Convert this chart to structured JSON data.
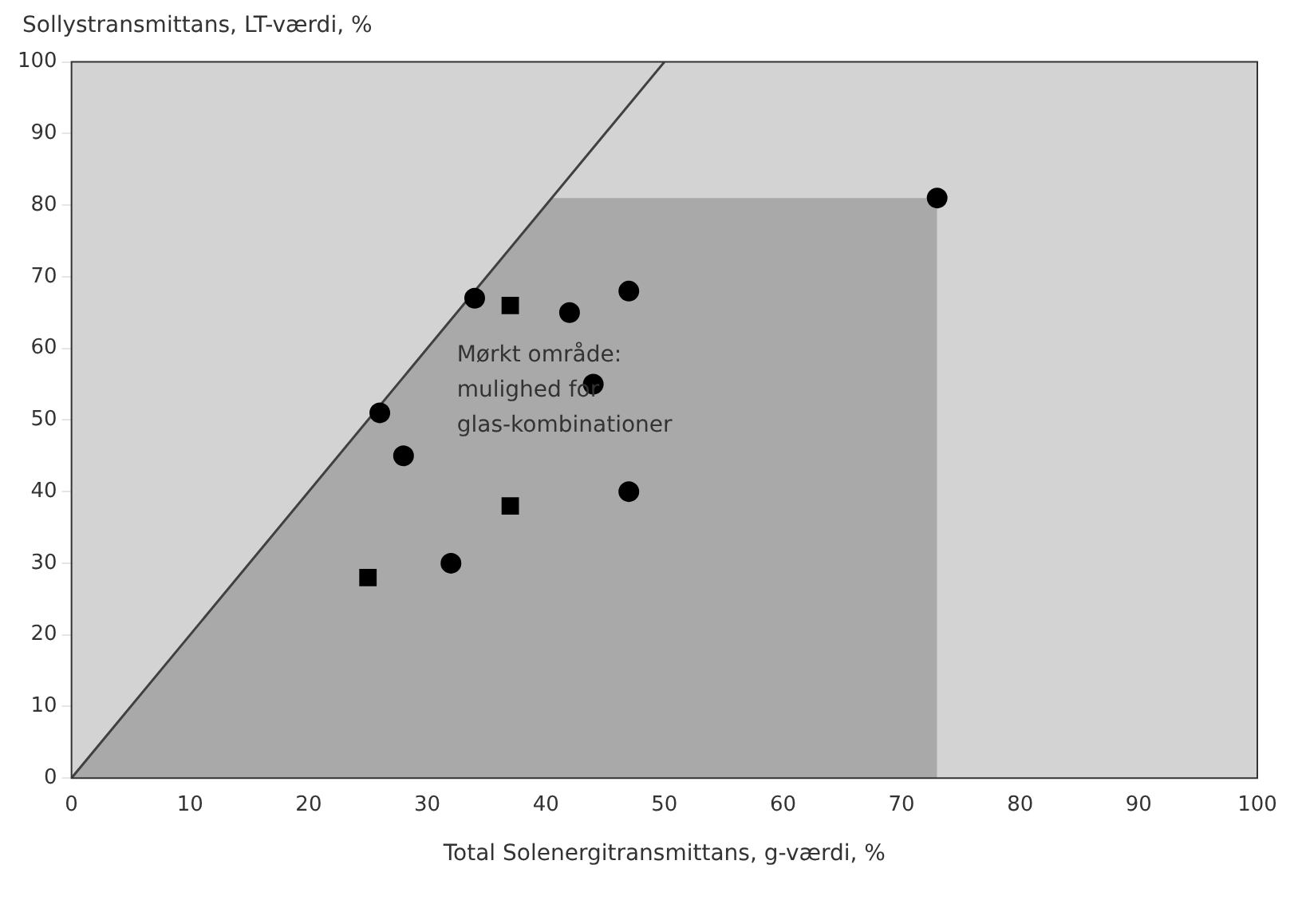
{
  "chart_data": {
    "type": "scatter",
    "xlabel": "Total Solenergitransmittans, g-værdi, %",
    "ylabel": "Sollystransmittans, LT-værdi, %",
    "xlim": [
      0,
      100
    ],
    "ylim": [
      0,
      100
    ],
    "xticks": [
      0,
      10,
      20,
      30,
      40,
      50,
      60,
      70,
      80,
      90,
      100
    ],
    "yticks": [
      0,
      10,
      20,
      30,
      40,
      50,
      60,
      70,
      80,
      90,
      100
    ],
    "grid": false,
    "legend": false,
    "series": [
      {
        "type": "area",
        "color": "#a9a9a9",
        "x": [
          0,
          40.5,
          73,
          73
        ],
        "values": [
          0,
          81,
          81,
          0
        ]
      },
      {
        "type": "line",
        "color": "#404040",
        "x": [
          0,
          50
        ],
        "values": [
          0,
          100
        ]
      },
      {
        "type": "scatter",
        "color": "#000000",
        "marker": "circle",
        "x": [
          34,
          42,
          47,
          73,
          26,
          28,
          44,
          47,
          32
        ],
        "values": [
          67,
          65,
          68,
          81,
          51,
          45,
          55,
          40,
          30
        ]
      },
      {
        "type": "scatter",
        "color": "#000000",
        "marker": "square",
        "x": [
          37,
          37,
          25
        ],
        "values": [
          66,
          38,
          28
        ]
      }
    ],
    "annotations": [
      "Mørkt område:\nmulighed for\nglas-kombinationer"
    ]
  }
}
